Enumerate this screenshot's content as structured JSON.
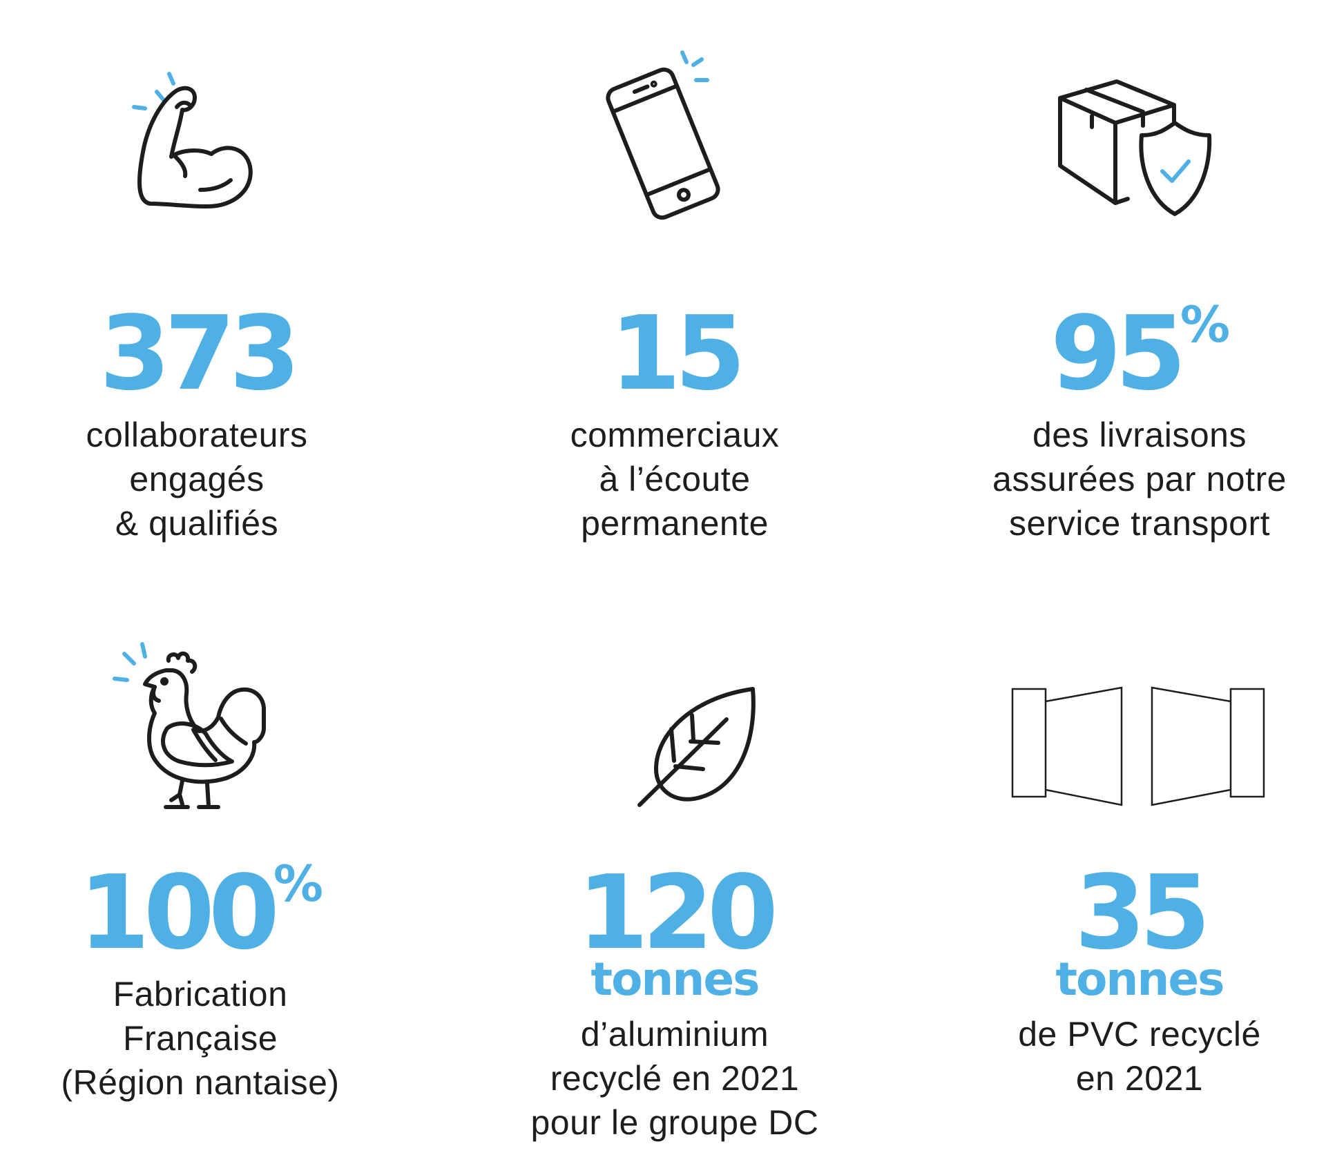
{
  "colors": {
    "accent": "#4fb0e5",
    "text": "#1d1d1b",
    "background": "#ffffff"
  },
  "stats": [
    {
      "icon": "flexed-biceps-icon",
      "value": "373",
      "suffix": "",
      "unit": "",
      "lines": [
        "collaborateurs",
        "engagés",
        "& qualifiés"
      ]
    },
    {
      "icon": "smartphone-icon",
      "value": "15",
      "suffix": "",
      "unit": "",
      "lines": [
        "commerciaux",
        "à l’écoute",
        "permanente"
      ]
    },
    {
      "icon": "package-shield-icon",
      "value": "95",
      "suffix": "%",
      "unit": "",
      "lines": [
        "des livraisons",
        "assurées par notre",
        "service transport"
      ]
    },
    {
      "icon": "rooster-icon",
      "value": "100",
      "suffix": "%",
      "unit": "",
      "lines": [
        "Fabrication",
        "Française",
        "(Région nantaise)"
      ]
    },
    {
      "icon": "leaf-icon",
      "value": "120",
      "suffix": "",
      "unit": "tonnes",
      "lines": [
        "d’aluminium",
        "recyclé en 2021",
        "pour le groupe DC"
      ]
    },
    {
      "icon": "window-profile-icon",
      "value": "35",
      "suffix": "",
      "unit": "tonnes",
      "lines": [
        "de PVC recyclé",
        "en 2021"
      ]
    }
  ]
}
